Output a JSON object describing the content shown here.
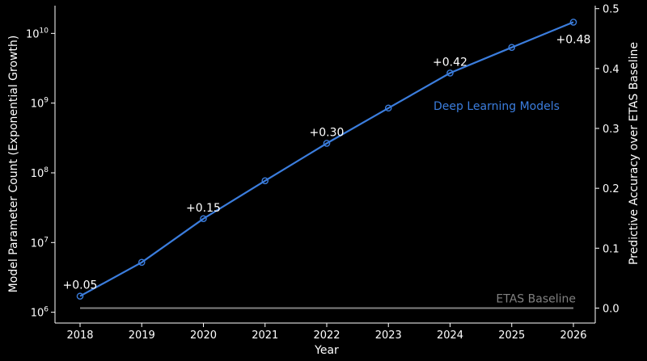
{
  "chart_data": {
    "type": "line",
    "title": "",
    "xlabel": "Year",
    "ylabel_left": "Model Parameter Count (Exponential Growth)",
    "ylabel_right": "Predictive Accuracy over ETAS Baseline",
    "x": [
      2018,
      2019,
      2020,
      2021,
      2022,
      2023,
      2024,
      2025,
      2026
    ],
    "y_left_scale": "log",
    "y_left_lim": [
      700000,
      25000000000
    ],
    "y_left_ticks": [
      {
        "value": 1000000,
        "base": "10",
        "exp": "6"
      },
      {
        "value": 10000000,
        "base": "10",
        "exp": "7"
      },
      {
        "value": 100000000,
        "base": "10",
        "exp": "8"
      },
      {
        "value": 1000000000,
        "base": "10",
        "exp": "9"
      },
      {
        "value": 10000000000,
        "base": "10",
        "exp": "10"
      }
    ],
    "y_right_lim": [
      -0.025,
      0.505
    ],
    "y_right_ticks": [
      "0.0",
      "0.1",
      "0.2",
      "0.3",
      "0.4",
      "0.5"
    ],
    "grid": false,
    "series": [
      {
        "name": "Deep Learning Models",
        "color": "#3b7ddd",
        "axis": "left",
        "values": [
          1700000,
          5200000,
          22000000,
          77000000,
          265000000,
          850000000,
          2700000000,
          6300000000,
          14500000000
        ]
      },
      {
        "name": "ETAS Baseline",
        "color": "#808080",
        "axis": "right",
        "values": [
          0,
          0,
          0,
          0,
          0,
          0,
          0,
          0,
          0
        ]
      }
    ],
    "annotations": [
      {
        "x": 2018,
        "text": "+0.05",
        "placement": "above"
      },
      {
        "x": 2020,
        "text": "+0.15",
        "placement": "above"
      },
      {
        "x": 2022,
        "text": "+0.30",
        "placement": "above"
      },
      {
        "x": 2024,
        "text": "+0.42",
        "placement": "above"
      },
      {
        "x": 2026,
        "text": "+0.48",
        "placement": "below"
      }
    ]
  }
}
